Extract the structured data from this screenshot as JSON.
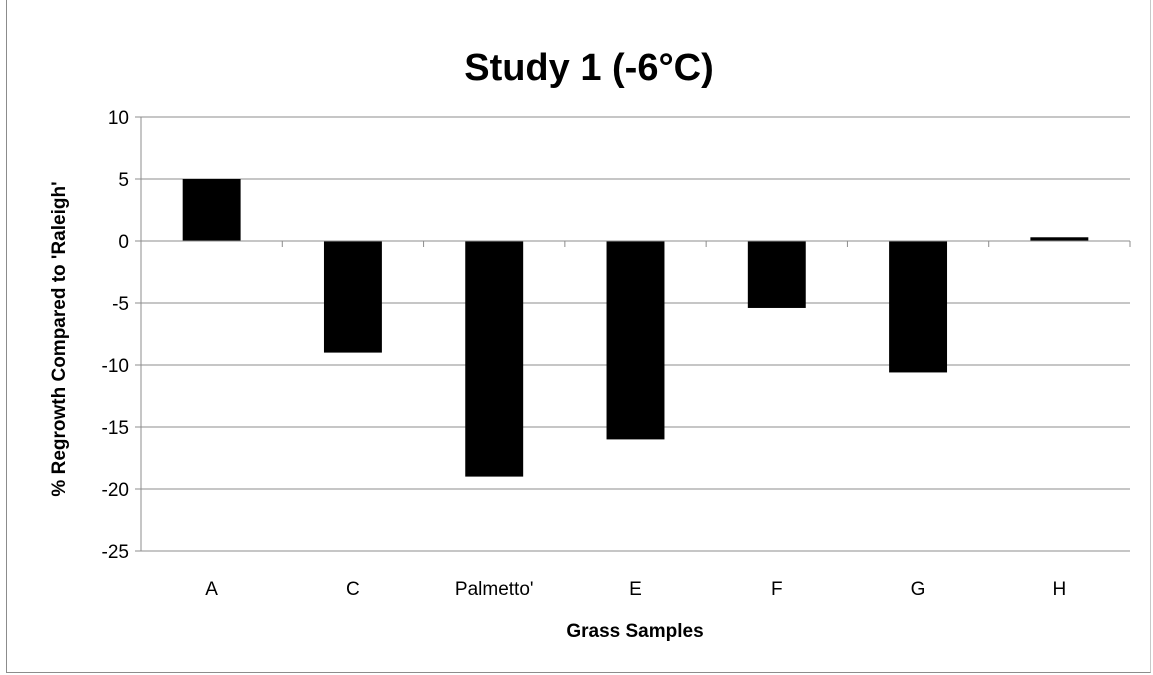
{
  "chart_data": {
    "type": "bar",
    "title": "Study 1 (-6°C)",
    "xlabel": "Grass Samples",
    "ylabel": "% Regrowth Compared to 'Raleigh'",
    "categories": [
      "A",
      "C",
      "Palmetto'",
      "E",
      "F",
      "G",
      "H"
    ],
    "values": [
      5,
      -9,
      -19,
      -16,
      -5.4,
      -10.6,
      0.3
    ],
    "ylim": [
      -25,
      10
    ],
    "yticks": [
      10,
      5,
      0,
      -5,
      -10,
      -15,
      -20,
      -25
    ],
    "grid": true,
    "legend": "none",
    "bar_color": "#000000",
    "grid_color": "#8c8c8c"
  }
}
